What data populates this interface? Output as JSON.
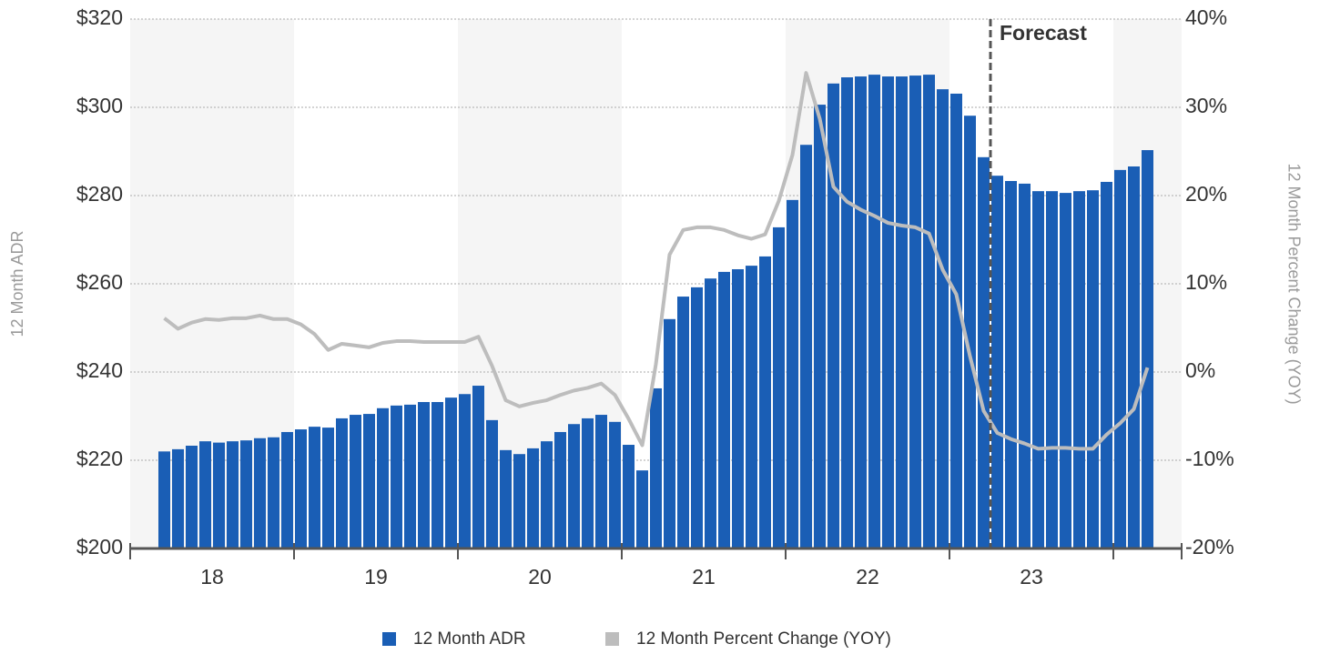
{
  "chart_data": {
    "type": "bar",
    "categories": [
      null,
      null,
      null,
      null,
      null,
      null,
      null,
      null,
      null,
      null,
      null,
      null,
      null,
      null,
      null,
      null,
      null,
      null,
      null,
      null,
      null,
      null,
      null,
      null,
      null,
      null,
      null,
      null,
      null,
      null,
      null,
      null,
      null,
      null,
      null,
      null,
      null,
      null,
      null,
      null,
      null,
      null,
      null,
      null,
      null,
      null,
      null,
      null,
      null,
      null,
      null,
      null,
      null,
      null,
      null,
      null,
      null,
      null,
      null,
      null,
      null,
      null,
      null,
      null,
      null,
      null,
      null,
      null,
      null,
      null,
      null,
      null,
      null
    ],
    "x_groups": [
      "18",
      "19",
      "20",
      "21",
      "22",
      "23"
    ],
    "series": [
      {
        "name": "12 Month ADR",
        "type": "bar",
        "color": "#1a5eb5",
        "values": [
          222,
          222.5,
          223.3,
          224.3,
          224,
          224.3,
          224.5,
          225,
          225.2,
          226.4,
          227,
          227.6,
          227.4,
          229.5,
          230.3,
          230.5,
          231.8,
          232.4,
          232.6,
          233.2,
          233.2,
          234.2,
          235,
          236.9,
          229.1,
          222.3,
          221.4,
          222.7,
          224.3,
          226.4,
          228.2,
          229.5,
          230.3,
          228.7,
          223.5,
          217.7,
          236.3,
          252,
          257.1,
          259.2,
          261.2,
          262.7,
          263.3,
          264.1,
          266.2,
          272.8,
          279,
          291.5,
          300.6,
          305.4,
          306.8,
          307,
          307.4,
          307,
          307,
          307.2,
          307.4,
          304.1,
          303.1,
          298.1,
          288.7,
          284.5,
          283.3,
          282.7,
          281,
          281,
          280.6,
          281,
          281.2,
          283.1,
          285.8,
          286.6,
          290.3
        ]
      },
      {
        "name": "12 Month Percent Change (YOY)",
        "type": "line",
        "axis": "y2",
        "color": "#bdbdbd",
        "values": [
          6.1,
          4.9,
          5.6,
          6,
          5.9,
          6.1,
          6.1,
          6.4,
          6,
          6,
          5.4,
          4.3,
          2.5,
          3.2,
          3,
          2.8,
          3.3,
          3.5,
          3.5,
          3.4,
          3.4,
          3.4,
          3.4,
          4,
          0.7,
          -3.2,
          -3.9,
          -3.5,
          -3.2,
          -2.6,
          -2.1,
          -1.8,
          -1.3,
          -2.6,
          -5.3,
          -8.3,
          0.9,
          13.3,
          16.1,
          16.4,
          16.4,
          16.1,
          15.5,
          15.1,
          15.6,
          19.4,
          24.6,
          33.9,
          28.7,
          21,
          19.3,
          18.4,
          17.7,
          16.9,
          16.6,
          16.4,
          15.7,
          11.6,
          8.8,
          1.8,
          -4.4,
          -6.9,
          -7.6,
          -8.1,
          -8.7,
          -8.6,
          -8.6,
          -8.7,
          -8.7,
          -7.1,
          -5.8,
          -4.2,
          0.5
        ]
      }
    ],
    "y_label": "12 Month ADR",
    "y2_label": "12 Month Percent Change (YOY)",
    "ylim": [
      200,
      320
    ],
    "yticks": [
      {
        "value": 200,
        "label": "$200"
      },
      {
        "value": 220,
        "label": "$220"
      },
      {
        "value": 240,
        "label": "$240"
      },
      {
        "value": 260,
        "label": "$260"
      },
      {
        "value": 280,
        "label": "$280"
      },
      {
        "value": 300,
        "label": "$300"
      },
      {
        "value": 320,
        "label": "$320"
      }
    ],
    "y2lim": [
      -20,
      40
    ],
    "y2ticks": [
      {
        "value": -20,
        "label": "-20%"
      },
      {
        "value": -10,
        "label": "-10%"
      },
      {
        "value": 0,
        "label": "0%"
      },
      {
        "value": 10,
        "label": "10%"
      },
      {
        "value": 20,
        "label": "20%"
      },
      {
        "value": 30,
        "label": "30%"
      },
      {
        "value": 40,
        "label": "40%"
      }
    ],
    "annotation": "Forecast",
    "grid": true,
    "legend": "bottom"
  }
}
